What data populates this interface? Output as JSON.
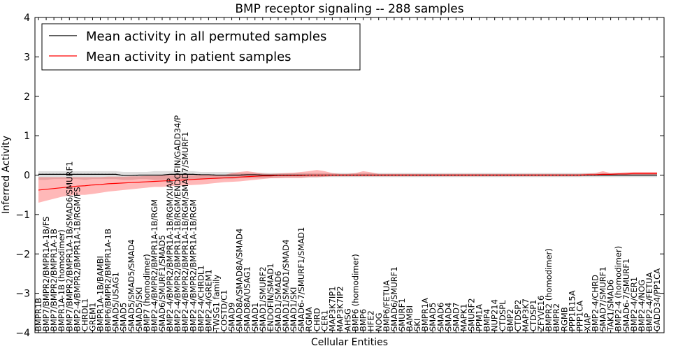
{
  "chart_data": {
    "type": "line",
    "title": "BMP receptor signaling -- 288 samples",
    "xlabel": "Cellular Entities",
    "ylabel": "Inferred Activity",
    "ylim": [
      -4,
      4
    ],
    "yticks": [
      -4,
      -3,
      -2,
      -1,
      0,
      1,
      2,
      3,
      4
    ],
    "ytick_labels": [
      "−4",
      "−3",
      "−2",
      "−1",
      "0",
      "1",
      "2",
      "3",
      "4"
    ],
    "grid": false,
    "legend_position": "top-left",
    "x_tick_labels": [
      "BMPR1B",
      "BMP7/BMPR2/BMPR1A-1B/FS",
      "BMP7/BMPR2/BMPR1A-1B",
      "BMPR1A-1B (homodimer)",
      "BMP7/BMPR2/BMPR1A-1B/SMAD6/SMURF1",
      "BMP2-4/BMPR2/BMPR1A-1B/RGM/FS",
      "CHRDL1",
      "GREM1",
      "BMPR1A-1B/BAMBI",
      "BMP6/BMPR2/BMPR1A-1B",
      "SMAD5/USAG1",
      "SMAD5",
      "SMAD5/SMAD5/SMAD4",
      "SMAD5/SKI",
      "BMP7 (homodimer)",
      "BMP2-4/BMPR2/BMPR1A-1B/RGM",
      "SMAD6/SMURF1/SMAD5",
      "BMP2-4/BMPR2/BMPR1A-1B/RGM/XIAP",
      "BMP2-4/BMPR2/BMPR1A-1B/RGM/ENDOFIN/GADD34/P",
      "BMP2-4/BMPR2/BMPR1A-1B/RGM/SMAD7/SMURF1",
      "BMP2-4/BMPR2/BMPR1A-1B/RGM",
      "BMP2-4/CHRDL1",
      "BMP2-4/GREM1",
      "TWSG1 family",
      "COSTD/C1",
      "SMAD9",
      "SMAD8A/SMAD8A/SMAD4",
      "SMAD8A/USAG1",
      "SMAD1",
      "SMAD1/SMURF2",
      "ENDOFIN/SMAD1",
      "SMAD1/SMAD6",
      "SMAD1/SMAD1/SMAD4",
      "SMAD1/SKI",
      "SMAD6-7/SMURF1/SMAD1",
      "RGMA",
      "CHRD",
      "CER1",
      "MAP3K7IP1",
      "MAP3K7IP2",
      "AHSG",
      "BMP6 (homodimer)",
      "BMP6",
      "HFE2",
      "NOG",
      "BMP6/FETUA",
      "SMAD6/SMURF1",
      "SMURF1",
      "BAMBI",
      "SKI",
      "BMPR1A",
      "SMAD5",
      "SMAD6",
      "SMAD4",
      "SMAD7",
      "MAPK1",
      "SMURF2",
      "PPM1A",
      "BMP4",
      "NUP214",
      "CTDSPL",
      "BMP2",
      "CTDSP2",
      "MAP3K7",
      "CTDSP1",
      "ZFYVE16",
      "BMPR2 (homodimer)",
      "BMPR2",
      "RGMB",
      "PPP1R15A",
      "PPP1CA",
      "XIAP",
      "BMP2-4/CHRD",
      "SMAD7/SMURF1",
      "TAK1/SMAD6",
      "BMP2-4 (homodimer)",
      "SMAD6-7/SMURF1",
      "BMP2-4/CER1",
      "BMP2-4/NOG",
      "BMP2-4/FETUA",
      "GADD34/PP1CA"
    ],
    "legend": [
      "Mean activity in all permuted samples",
      "Mean activity in patient samples"
    ],
    "series": [
      {
        "name": "Mean activity in all permuted samples",
        "color": "#000000",
        "values": [
          0.02,
          0.02,
          0.02,
          0.02,
          0.02,
          0.02,
          0.02,
          0.02,
          0.02,
          0.02,
          0.02,
          -0.01,
          -0.01,
          0.0,
          0.0,
          0.0,
          0.0,
          0.02,
          0.02,
          0.02,
          0.02,
          0.01,
          0.01,
          0.0,
          0.0,
          0.0,
          0.0,
          0.01,
          0.01,
          0.0,
          0.0,
          0.0,
          0.0,
          0.0,
          0.0,
          0.0,
          0.0,
          0.0,
          0.0,
          0.0,
          0.0,
          0.0,
          0.0,
          0.0,
          0.0,
          0.0,
          0.0,
          0.0,
          0.0,
          0.0,
          0.0,
          0.0,
          0.0,
          0.0,
          0.0,
          0.0,
          0.0,
          0.0,
          0.0,
          0.0,
          0.0,
          0.0,
          0.0,
          0.0,
          0.0,
          0.0,
          0.0,
          0.0,
          0.0,
          0.0,
          0.0,
          0.0,
          0.0,
          0.0,
          0.0,
          0.0,
          0.0,
          0.0,
          0.0,
          0.0,
          0.0
        ],
        "band_lower": [
          -0.12,
          -0.12,
          -0.1,
          -0.1,
          -0.1,
          -0.1,
          -0.12,
          -0.1,
          -0.1,
          -0.1,
          -0.1,
          -0.12,
          -0.12,
          -0.1,
          -0.1,
          -0.12,
          -0.12,
          -0.1,
          -0.1,
          -0.1,
          -0.1,
          -0.1,
          -0.1,
          -0.1,
          -0.1,
          -0.1,
          -0.08,
          -0.08,
          -0.08,
          -0.08,
          -0.07,
          -0.06,
          -0.06,
          -0.06,
          -0.06,
          -0.06,
          -0.06,
          -0.05,
          -0.05,
          -0.05,
          -0.05,
          -0.05,
          -0.05,
          -0.05,
          -0.05,
          -0.05,
          -0.05,
          -0.05,
          -0.05,
          -0.05,
          -0.05,
          -0.05,
          -0.05,
          -0.05,
          -0.05,
          -0.05,
          -0.05,
          -0.05,
          -0.05,
          -0.05,
          -0.05,
          -0.05,
          -0.05,
          -0.05,
          -0.05,
          -0.05,
          -0.05,
          -0.05,
          -0.05,
          -0.05,
          -0.05,
          -0.05,
          -0.05,
          -0.05,
          -0.05,
          -0.05,
          -0.05,
          -0.05,
          -0.05,
          -0.05,
          -0.05
        ],
        "band_upper": [
          0.1,
          0.1,
          0.1,
          0.1,
          0.1,
          0.1,
          0.1,
          0.1,
          0.1,
          0.1,
          0.1,
          0.08,
          0.08,
          0.08,
          0.08,
          0.1,
          0.1,
          0.1,
          0.1,
          0.1,
          0.1,
          0.08,
          0.08,
          0.08,
          0.08,
          0.08,
          0.06,
          0.06,
          0.06,
          0.06,
          0.05,
          0.05,
          0.05,
          0.05,
          0.05,
          0.05,
          0.05,
          0.05,
          0.05,
          0.05,
          0.05,
          0.05,
          0.05,
          0.05,
          0.05,
          0.05,
          0.05,
          0.05,
          0.05,
          0.05,
          0.05,
          0.05,
          0.05,
          0.05,
          0.05,
          0.05,
          0.05,
          0.05,
          0.05,
          0.05,
          0.05,
          0.05,
          0.05,
          0.05,
          0.05,
          0.05,
          0.05,
          0.05,
          0.05,
          0.05,
          0.05,
          0.05,
          0.05,
          0.05,
          0.05,
          0.05,
          0.05,
          0.05,
          0.05,
          0.05,
          0.05
        ]
      },
      {
        "name": "Mean activity in patient samples",
        "color": "#ff0000",
        "values": [
          -0.38,
          -0.36,
          -0.34,
          -0.32,
          -0.3,
          -0.28,
          -0.27,
          -0.25,
          -0.24,
          -0.22,
          -0.21,
          -0.2,
          -0.19,
          -0.18,
          -0.17,
          -0.16,
          -0.15,
          -0.14,
          -0.13,
          -0.12,
          -0.11,
          -0.1,
          -0.09,
          -0.08,
          -0.07,
          -0.06,
          -0.05,
          -0.04,
          -0.03,
          -0.02,
          -0.02,
          -0.01,
          -0.01,
          -0.01,
          -0.01,
          0.0,
          0.0,
          0.0,
          0.0,
          0.0,
          0.0,
          0.0,
          0.0,
          0.0,
          0.0,
          0.0,
          0.0,
          0.0,
          0.0,
          0.0,
          0.0,
          0.0,
          0.0,
          0.0,
          0.0,
          0.0,
          0.0,
          0.0,
          0.0,
          0.0,
          0.0,
          0.0,
          0.0,
          0.0,
          0.0,
          0.0,
          0.0,
          0.0,
          0.0,
          0.0,
          0.0,
          0.01,
          0.01,
          0.02,
          0.02,
          0.03,
          0.03,
          0.04,
          0.04,
          0.04,
          0.04
        ],
        "band_lower": [
          -0.7,
          -0.65,
          -0.6,
          -0.55,
          -0.52,
          -0.5,
          -0.5,
          -0.48,
          -0.45,
          -0.42,
          -0.4,
          -0.38,
          -0.36,
          -0.34,
          -0.32,
          -0.3,
          -0.3,
          -0.28,
          -0.27,
          -0.26,
          -0.25,
          -0.24,
          -0.22,
          -0.2,
          -0.18,
          -0.17,
          -0.16,
          -0.14,
          -0.12,
          -0.1,
          -0.08,
          -0.08,
          -0.07,
          -0.07,
          -0.07,
          -0.05,
          -0.05,
          -0.04,
          -0.03,
          -0.03,
          -0.03,
          -0.03,
          -0.03,
          -0.03,
          -0.03,
          -0.03,
          -0.03,
          -0.03,
          -0.03,
          -0.03,
          -0.03,
          -0.03,
          -0.03,
          -0.03,
          -0.03,
          -0.03,
          -0.03,
          -0.03,
          -0.03,
          -0.03,
          -0.03,
          -0.03,
          -0.03,
          -0.03,
          -0.03,
          -0.03,
          -0.03,
          -0.03,
          -0.03,
          -0.03,
          -0.03,
          -0.02,
          -0.02,
          -0.01,
          -0.01,
          -0.01,
          -0.01,
          0.0,
          0.0,
          0.0,
          0.0
        ],
        "band_upper": [
          -0.05,
          -0.05,
          -0.05,
          -0.05,
          -0.05,
          -0.05,
          -0.05,
          -0.05,
          -0.05,
          -0.04,
          -0.04,
          -0.04,
          -0.03,
          -0.03,
          -0.02,
          -0.02,
          -0.01,
          0.0,
          0.0,
          0.0,
          0.0,
          0.0,
          0.0,
          0.0,
          0.0,
          0.05,
          0.08,
          0.1,
          0.07,
          0.04,
          0.03,
          0.04,
          0.05,
          0.06,
          0.08,
          0.1,
          0.13,
          0.1,
          0.05,
          0.03,
          0.03,
          0.05,
          0.1,
          0.07,
          0.03,
          0.03,
          0.03,
          0.03,
          0.03,
          0.03,
          0.03,
          0.03,
          0.03,
          0.03,
          0.03,
          0.03,
          0.03,
          0.03,
          0.03,
          0.03,
          0.03,
          0.03,
          0.03,
          0.03,
          0.03,
          0.03,
          0.03,
          0.03,
          0.03,
          0.03,
          0.03,
          0.04,
          0.05,
          0.1,
          0.05,
          0.06,
          0.07,
          0.08,
          0.08,
          0.08,
          0.08
        ]
      }
    ]
  }
}
